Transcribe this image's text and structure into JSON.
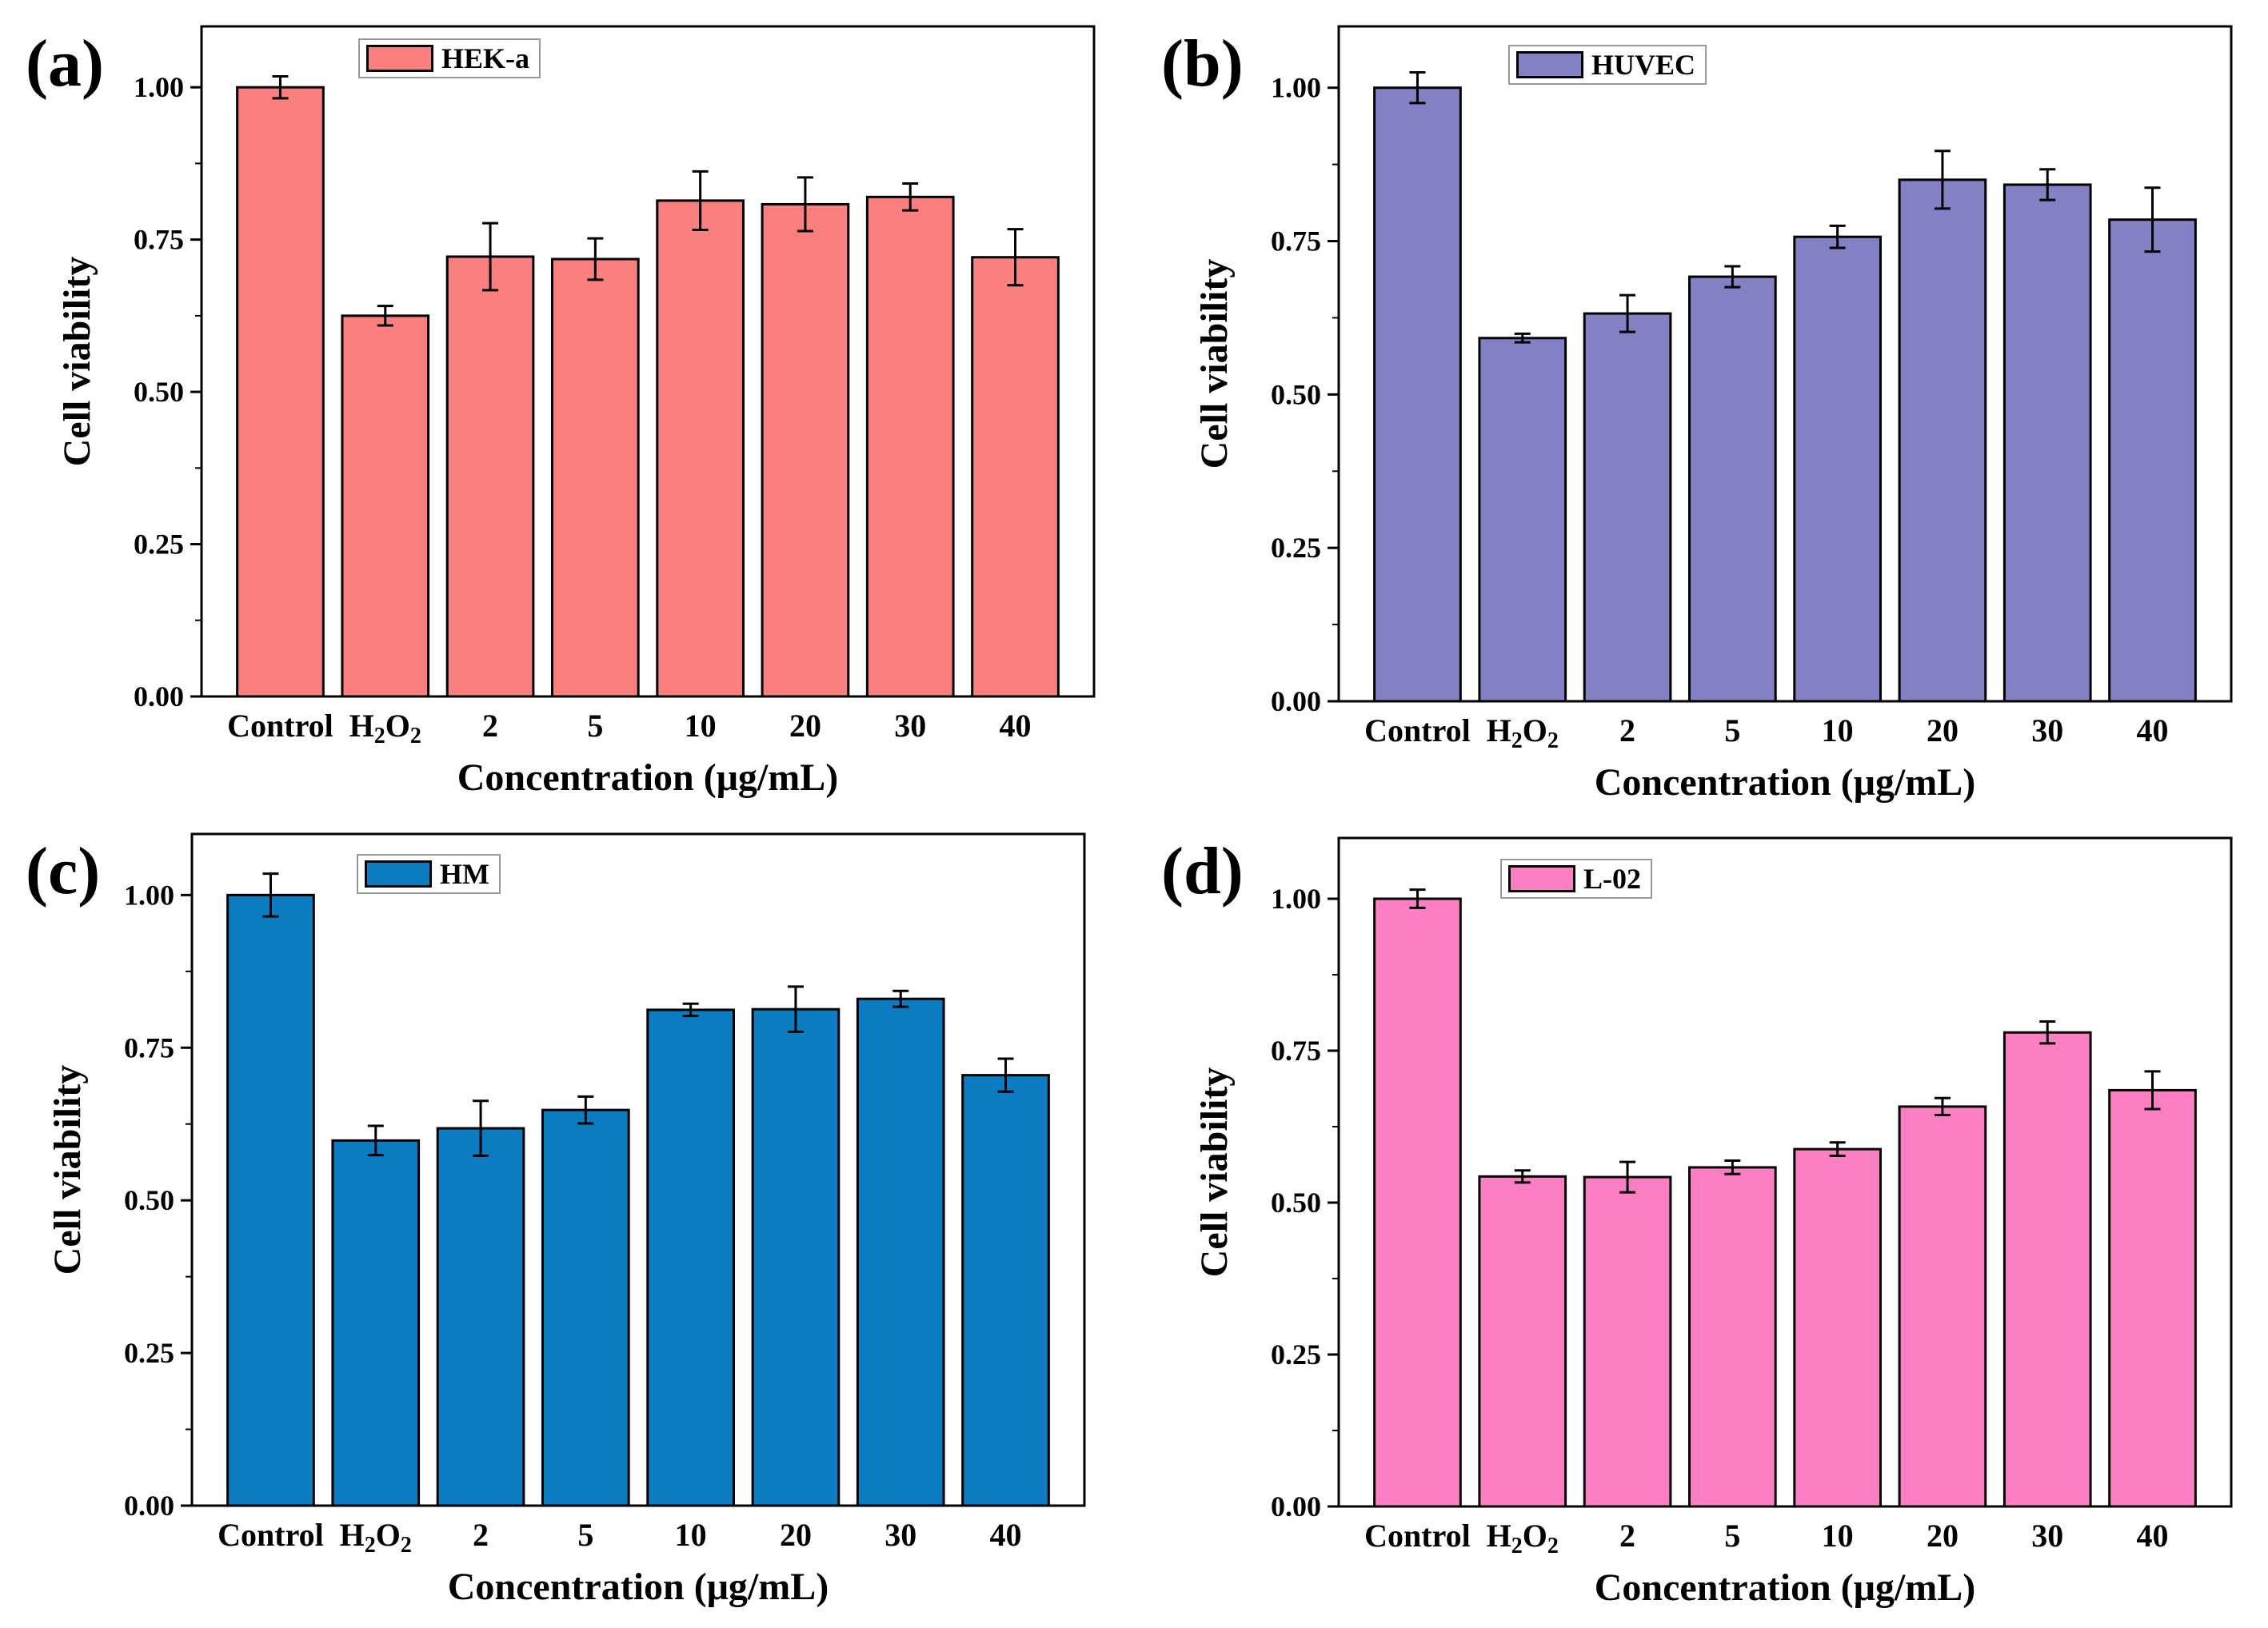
{
  "chart_data": [
    {
      "type": "bar",
      "panel_label": "(a)",
      "legend": "HEK-a",
      "color": "#fa7f7f",
      "categories": [
        "Control",
        "H2O2",
        "2",
        "5",
        "10",
        "20",
        "30",
        "40"
      ],
      "values": [
        1.0,
        0.625,
        0.722,
        0.718,
        0.814,
        0.808,
        0.82,
        0.721
      ],
      "errors": [
        0.018,
        0.016,
        0.055,
        0.034,
        0.048,
        0.044,
        0.022,
        0.046
      ],
      "xlabel": "Concentration (μg/mL)",
      "ylabel": "Cell viability",
      "yticks": [
        "0.00",
        "0.25",
        "0.50",
        "0.75",
        "1.00"
      ],
      "ylim": [
        0,
        1.1
      ]
    },
    {
      "type": "bar",
      "panel_label": "(b)",
      "legend": "HUVEC",
      "color": "#8381c4",
      "categories": [
        "Control",
        "H2O2",
        "2",
        "5",
        "10",
        "20",
        "30",
        "40"
      ],
      "values": [
        1.0,
        0.592,
        0.632,
        0.692,
        0.757,
        0.85,
        0.842,
        0.785
      ],
      "errors": [
        0.025,
        0.007,
        0.03,
        0.017,
        0.018,
        0.047,
        0.025,
        0.052
      ],
      "xlabel": "Concentration (μg/mL)",
      "ylabel": "Cell viability",
      "yticks": [
        "0.00",
        "0.25",
        "0.50",
        "0.75",
        "1.00"
      ],
      "ylim": [
        0,
        1.1
      ]
    },
    {
      "type": "bar",
      "panel_label": "(c)",
      "legend": "HM",
      "color": "#0b7cc2",
      "categories": [
        "Control",
        "H2O2",
        "2",
        "5",
        "10",
        "20",
        "30",
        "40"
      ],
      "values": [
        1.0,
        0.598,
        0.618,
        0.648,
        0.812,
        0.813,
        0.83,
        0.705
      ],
      "errors": [
        0.035,
        0.024,
        0.045,
        0.022,
        0.01,
        0.037,
        0.013,
        0.027
      ],
      "xlabel": "Concentration (μg/mL)",
      "ylabel": "Cell viability",
      "yticks": [
        "0.00",
        "0.25",
        "0.50",
        "0.75",
        "1.00"
      ],
      "ylim": [
        0,
        1.1
      ]
    },
    {
      "type": "bar",
      "panel_label": "(d)",
      "legend": "L-02",
      "color": "#fd7fc3",
      "categories": [
        "Control",
        "H2O2",
        "2",
        "5",
        "10",
        "20",
        "30",
        "40"
      ],
      "values": [
        1.0,
        0.543,
        0.542,
        0.558,
        0.588,
        0.658,
        0.78,
        0.685
      ],
      "errors": [
        0.015,
        0.01,
        0.025,
        0.011,
        0.011,
        0.014,
        0.018,
        0.031
      ],
      "xlabel": "Concentration (μg/mL)",
      "ylabel": "Cell viability",
      "yticks": [
        "0.00",
        "0.25",
        "0.50",
        "0.75",
        "1.00"
      ],
      "ylim": [
        0,
        1.1
      ]
    }
  ]
}
